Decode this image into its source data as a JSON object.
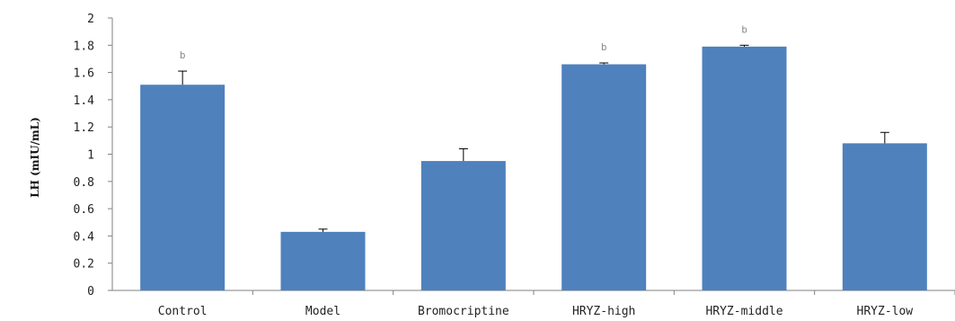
{
  "chart_data": {
    "type": "bar",
    "title": "",
    "xlabel": "",
    "ylabel": "LH (mIU/mL)",
    "ylim": [
      0,
      2
    ],
    "yticks": [
      "0",
      "0.2",
      "0.4",
      "0.6",
      "0.8",
      "1",
      "1.2",
      "1.4",
      "1.6",
      "1.8",
      "2"
    ],
    "categories": [
      "Control",
      "Model",
      "Bromocriptine",
      "HRYZ-high",
      "HRYZ-middle",
      "HRYZ-low"
    ],
    "values": [
      1.51,
      0.43,
      0.95,
      1.66,
      1.79,
      1.08
    ],
    "error": [
      0.1,
      0.02,
      0.09,
      0.01,
      0.01,
      0.08
    ],
    "annotations": [
      "b",
      "",
      "",
      "b",
      "b",
      ""
    ],
    "color": "#4f81bd",
    "grid": false,
    "legend": "none"
  }
}
